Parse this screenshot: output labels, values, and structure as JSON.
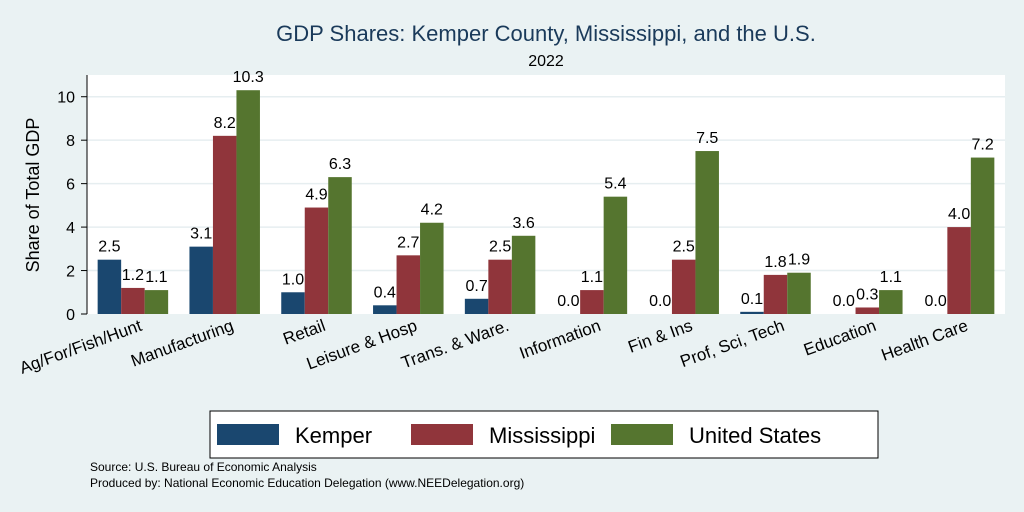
{
  "chart_data": {
    "type": "bar",
    "title": "GDP Shares: Kemper County, Mississippi, and the U.S.",
    "subtitle": "2022",
    "xlabel": "",
    "ylabel": "Share of Total GDP",
    "ylim": [
      0,
      11
    ],
    "yticks": [
      0,
      2,
      4,
      6,
      8,
      10
    ],
    "grid": true,
    "categories": [
      "Ag/For/Fish/Hunt",
      "Manufacturing",
      "Retail",
      "Leisure & Hosp",
      "Trans. & Ware.",
      "Information",
      "Fin & Ins",
      "Prof, Sci, Tech",
      "Education",
      "Health Care"
    ],
    "series": [
      {
        "name": "Kemper",
        "color": "#1a476f",
        "values": [
          2.5,
          3.1,
          1.0,
          0.4,
          0.7,
          0.0,
          0.0,
          0.1,
          0.0,
          0.0
        ]
      },
      {
        "name": "Mississippi",
        "color": "#90353b",
        "values": [
          1.2,
          8.2,
          4.9,
          2.7,
          2.5,
          1.1,
          2.5,
          1.8,
          0.3,
          4.0
        ]
      },
      {
        "name": "United States",
        "color": "#55752f",
        "values": [
          1.1,
          10.3,
          6.3,
          4.2,
          3.6,
          5.4,
          7.5,
          1.9,
          1.1,
          7.2
        ]
      }
    ],
    "legend_position": "bottom"
  },
  "notes": {
    "source": "Source: U.S. Bureau of Economic Analysis",
    "produced_by": "Produced by: National Economic Education Delegation (www.NEEDelegation.org)"
  }
}
